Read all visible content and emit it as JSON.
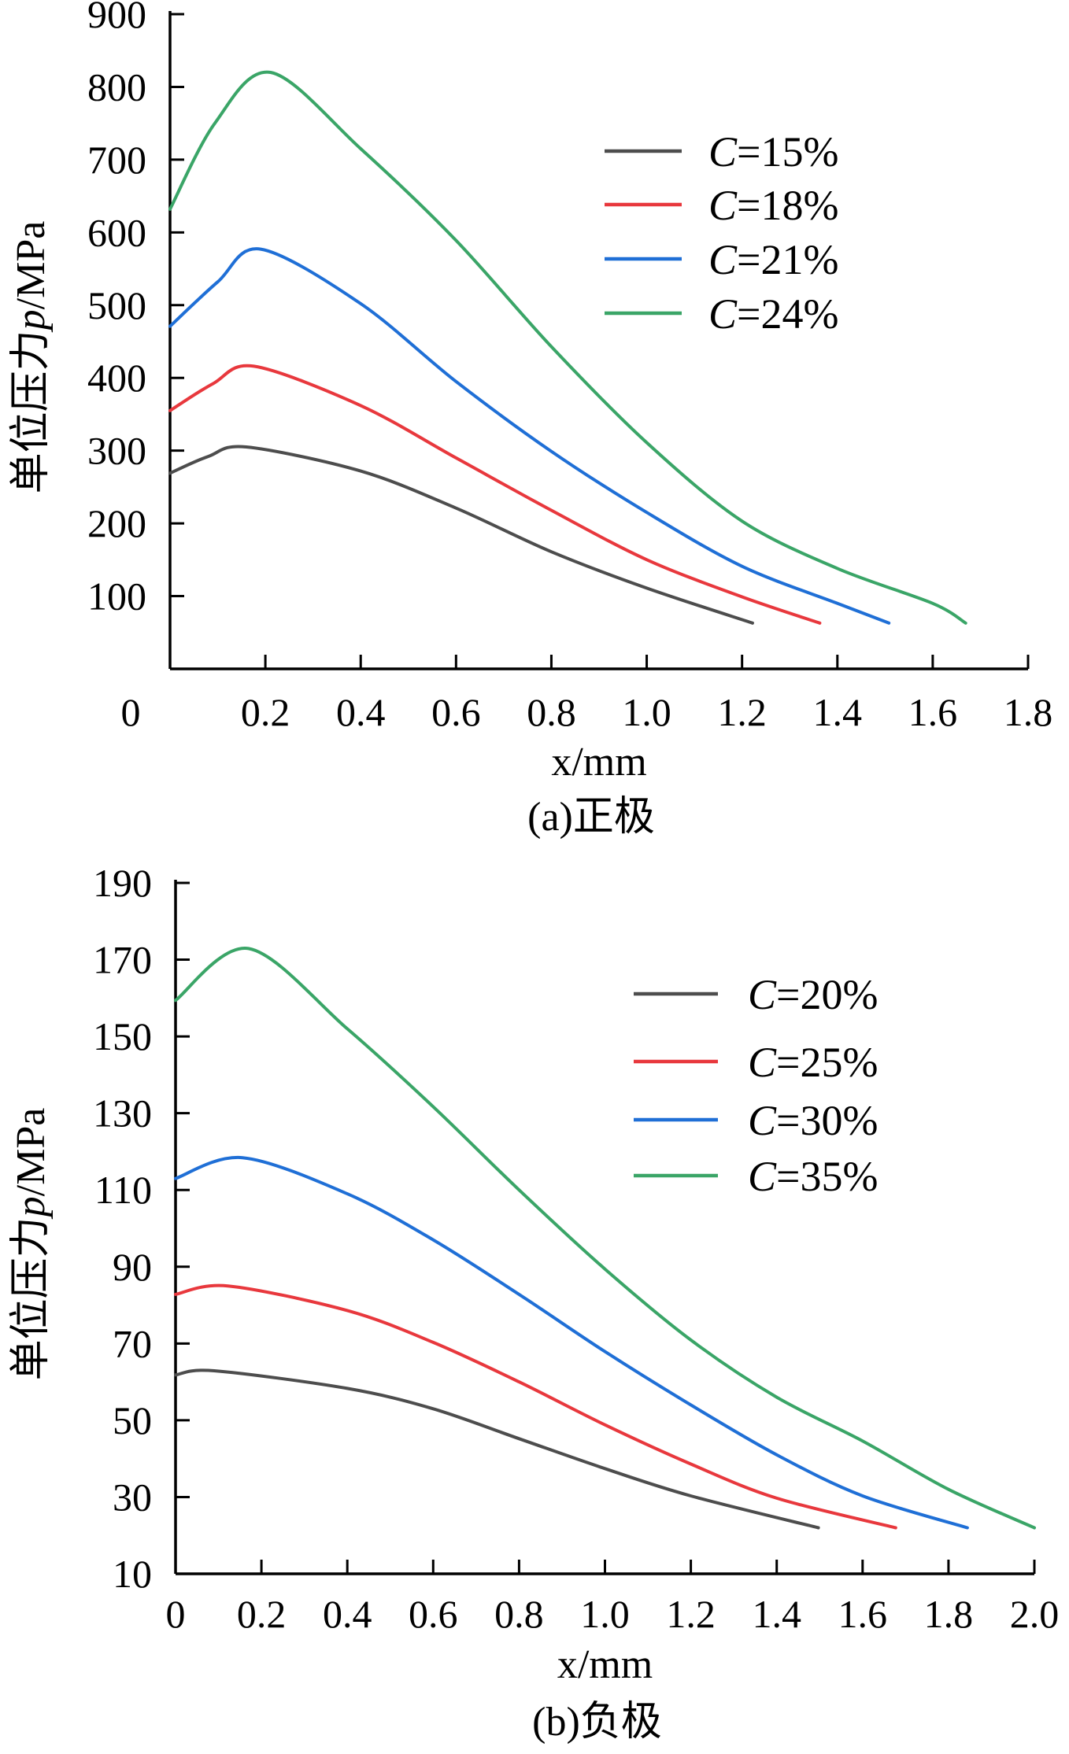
{
  "chart_data": [
    {
      "type": "line",
      "panel": "a",
      "caption": "(a)正极",
      "xlabel": "x/mm",
      "ylabel": "单位压力p/MPa",
      "xlim": [
        0,
        1.8
      ],
      "ylim": [
        0,
        900
      ],
      "xticks": [
        "0",
        "0.2",
        "0.4",
        "0.6",
        "0.8",
        "1.0",
        "1.2",
        "1.4",
        "1.6",
        "1.8"
      ],
      "yticks": [
        "100",
        "200",
        "300",
        "400",
        "500",
        "600",
        "700",
        "800",
        "900"
      ],
      "legend_position": "top-right",
      "series": [
        {
          "name": "C=15%",
          "var": "C",
          "rest": "=15%",
          "color": "#4d4d4d",
          "x": [
            0,
            0.08,
            0.16,
            0.4,
            0.6,
            0.8,
            1.0,
            1.222
          ],
          "y": [
            269,
            292,
            305,
            272,
            221,
            161,
            111,
            63
          ]
        },
        {
          "name": "C=18%",
          "var": "C",
          "rest": "=18%",
          "color": "#e8383d",
          "x": [
            0,
            0.09,
            0.176,
            0.4,
            0.6,
            0.8,
            1.0,
            1.2,
            1.363
          ],
          "y": [
            355,
            392,
            416,
            362,
            290,
            218,
            150,
            99,
            63
          ]
        },
        {
          "name": "C=21%",
          "var": "C",
          "rest": "=21%",
          "color": "#1f6fd6",
          "x": [
            0,
            0.1,
            0.19,
            0.4,
            0.6,
            0.8,
            1.0,
            1.2,
            1.4,
            1.508
          ],
          "y": [
            471,
            532,
            577,
            502,
            395,
            299,
            215,
            141,
            90,
            63
          ]
        },
        {
          "name": "C=24%",
          "var": "C",
          "rest": "=24%",
          "color": "#3aa567",
          "x": [
            0,
            0.094,
            0.211,
            0.4,
            0.6,
            0.8,
            1.0,
            1.2,
            1.4,
            1.6,
            1.669
          ],
          "y": [
            632,
            750,
            820,
            715,
            589,
            443,
            311,
            203,
            138,
            90,
            63
          ]
        }
      ]
    },
    {
      "type": "line",
      "panel": "b",
      "caption": "(b)负极",
      "xlabel": "x/mm",
      "ylabel": "单位压力p/MPa",
      "xlim": [
        0,
        2.0
      ],
      "ylim": [
        10,
        190
      ],
      "xticks": [
        "0",
        "0.2",
        "0.4",
        "0.6",
        "0.8",
        "1.0",
        "1.2",
        "1.4",
        "1.6",
        "1.8",
        "2.0"
      ],
      "yticks": [
        "10",
        "30",
        "50",
        "70",
        "90",
        "110",
        "130",
        "150",
        "170",
        "190"
      ],
      "legend_position": "top-right",
      "series": [
        {
          "name": "C=20%",
          "var": "C",
          "rest": "=20%",
          "color": "#4d4d4d",
          "x": [
            0,
            0.09,
            0.4,
            0.6,
            0.8,
            1.0,
            1.2,
            1.497
          ],
          "y": [
            61.8,
            62.9,
            58.3,
            53,
            45.2,
            37.4,
            30.3,
            22
          ]
        },
        {
          "name": "C=25%",
          "var": "C",
          "rest": "=25%",
          "color": "#e8383d",
          "x": [
            0,
            0.122,
            0.4,
            0.6,
            0.8,
            1.0,
            1.2,
            1.4,
            1.677
          ],
          "y": [
            82.8,
            85,
            78.6,
            70.3,
            60,
            48.8,
            38.6,
            29.7,
            22
          ]
        },
        {
          "name": "C=30%",
          "var": "C",
          "rest": "=30%",
          "color": "#1f6fd6",
          "x": [
            0,
            0.156,
            0.4,
            0.6,
            0.8,
            1.0,
            1.2,
            1.4,
            1.6,
            1.844
          ],
          "y": [
            113,
            118.4,
            109,
            97,
            82.8,
            67.9,
            54,
            41,
            30.3,
            22
          ]
        },
        {
          "name": "C=35%",
          "var": "C",
          "rest": "=35%",
          "color": "#3aa567",
          "x": [
            0,
            0.17,
            0.4,
            0.6,
            0.8,
            1.0,
            1.2,
            1.4,
            1.6,
            1.8,
            2.0
          ],
          "y": [
            159.4,
            172.9,
            152,
            131.7,
            110,
            89.4,
            70.9,
            56,
            44.6,
            32,
            22
          ]
        }
      ]
    }
  ]
}
